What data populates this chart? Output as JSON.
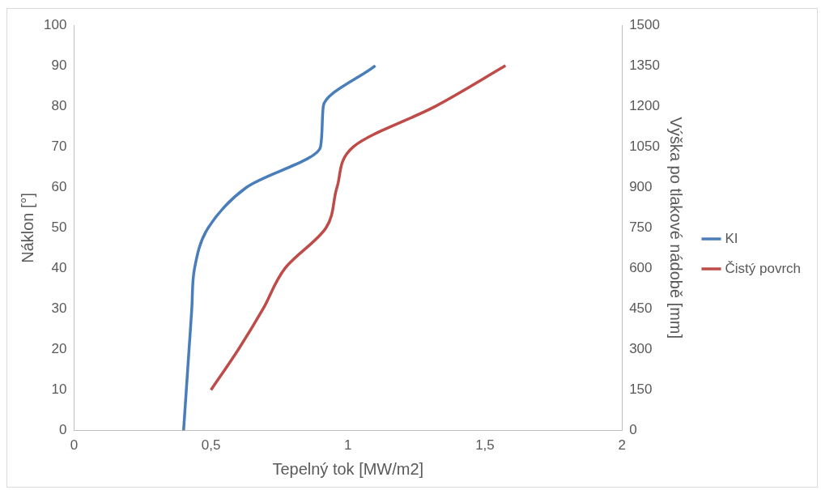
{
  "chart_data": {
    "type": "line",
    "xlabel": "Tepelný tok [MW/m2]",
    "ylabel": "Náklon [°]",
    "y2label": "Výška po tlakové nádobě [mm]",
    "xlim": [
      0,
      2
    ],
    "xticks": [
      0,
      {
        "value": 0.5,
        "label": "0,5"
      },
      1,
      {
        "value": 1.5,
        "label": "1,5"
      },
      2
    ],
    "ylim": [
      0,
      100
    ],
    "yticks": [
      0,
      10,
      20,
      30,
      40,
      50,
      60,
      70,
      80,
      90,
      100
    ],
    "y2lim": [
      0,
      1500
    ],
    "y2ticks": [
      0,
      150,
      300,
      450,
      600,
      750,
      900,
      1050,
      1200,
      1350,
      1500
    ],
    "grid": false,
    "legend": "right",
    "marker": "none",
    "line_style": "solid",
    "series": [
      {
        "name": "KI",
        "color": "#4a7ebb",
        "x": [
          0.4,
          0.41,
          0.42,
          0.43,
          0.44,
          0.49,
          0.63,
          0.9,
          0.91,
          1.1
        ],
        "values": [
          0,
          10,
          20,
          30,
          40,
          50,
          60,
          70,
          80,
          90
        ]
      },
      {
        "name": "Čistý povrch",
        "color": "#be4b48",
        "x": [
          0.5,
          0.6,
          0.69,
          0.77,
          0.92,
          0.96,
          1.02,
          1.32,
          1.575
        ],
        "values": [
          10,
          20,
          30,
          40,
          50,
          60,
          70,
          80,
          90
        ]
      }
    ]
  }
}
